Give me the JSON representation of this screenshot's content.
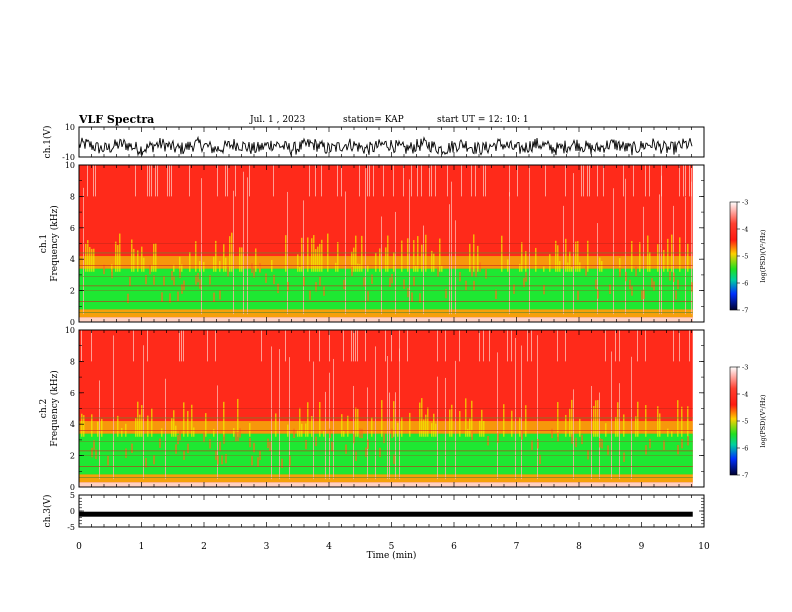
{
  "header": {
    "title": "VLF Spectra",
    "date": "Jul.  1  , 2023",
    "station": "station= KAP",
    "start": "start  UT =   12: 10: 1"
  },
  "chart_data": [
    {
      "type": "line",
      "name": "ch1-waveform",
      "ylabel": "ch.1(V)",
      "ylim": [
        -10,
        10
      ],
      "yticks": [
        "10",
        "-10"
      ],
      "description_series": "noisy voltage trace around -3 V"
    },
    {
      "type": "heatmap",
      "name": "ch1-spectrogram",
      "ylabel": "ch.1\nFrequency  (kHz)",
      "ylabel_top": "ch.1",
      "ylabel_main": "Frequency  (kHz)",
      "ylim": [
        0,
        10
      ],
      "yticks": [
        "0",
        "2",
        "4",
        "6",
        "8",
        "10"
      ],
      "colorbar": {
        "label": "log(PSD)(V²/Hz)",
        "range": [
          -7,
          -3
        ],
        "ticks": [
          "-3",
          "-4",
          "-5",
          "-6",
          "-7"
        ]
      }
    },
    {
      "type": "heatmap",
      "name": "ch2-spectrogram",
      "ylabel_top": "ch.2",
      "ylabel_main": "Frequency  (kHz)",
      "ylim": [
        0,
        10
      ],
      "yticks": [
        "0",
        "2",
        "4",
        "6",
        "8",
        "10"
      ],
      "colorbar": {
        "label": "log(PSD)(V²/Hz)",
        "range": [
          -7,
          -3
        ],
        "ticks": [
          "-3",
          "-4",
          "-5",
          "-6",
          "-7"
        ]
      }
    },
    {
      "type": "line",
      "name": "ch3-waveform",
      "ylabel": "ch.3(V)",
      "ylim": [
        -5,
        5
      ],
      "yticks": [
        "5",
        "0",
        "-5"
      ],
      "constant_value": -1
    }
  ],
  "xaxis": {
    "label": "Time  (min)",
    "range": [
      0,
      10
    ],
    "ticks": [
      "0",
      "1",
      "2",
      "3",
      "4",
      "5",
      "6",
      "7",
      "8",
      "9",
      "10"
    ],
    "data_end": 9.82
  },
  "colors": {
    "red": "#ff2a1a",
    "green": "#1ee832",
    "yellow": "#f0f000",
    "blue": "#0022ff"
  }
}
